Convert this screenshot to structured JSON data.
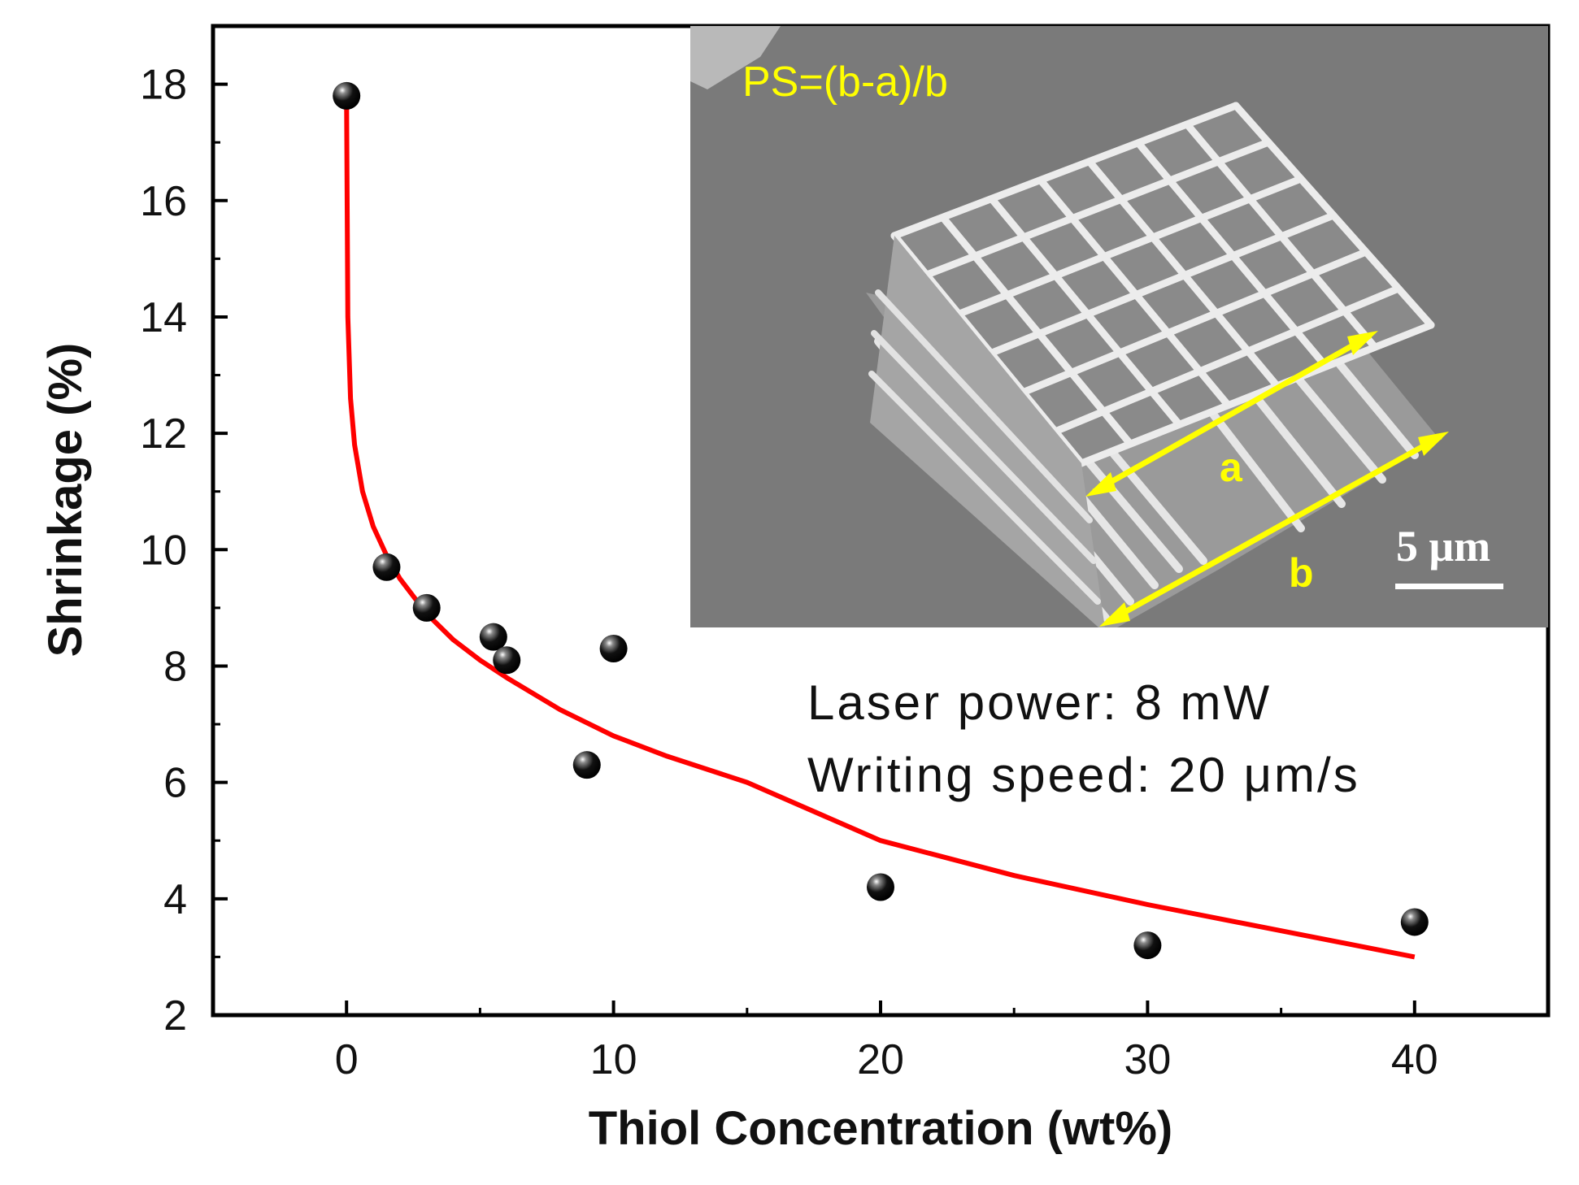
{
  "chart_data": {
    "type": "scatter",
    "xlabel": "Thiol Concentration (wt%)",
    "ylabel": "Shrinkage (%)",
    "xlim": [
      -5,
      45
    ],
    "ylim": [
      2,
      19
    ],
    "x_ticks": [
      0,
      10,
      20,
      30,
      40
    ],
    "x_tick_labels": [
      "0",
      "10",
      "20",
      "30",
      "40"
    ],
    "y_ticks": [
      2,
      4,
      6,
      8,
      10,
      12,
      14,
      16,
      18
    ],
    "y_tick_labels": [
      "2",
      "4",
      "6",
      "8",
      "10",
      "12",
      "14",
      "16",
      "18"
    ],
    "series": [
      {
        "name": "measured",
        "x": [
          0,
          1.5,
          3,
          5.5,
          6,
          9,
          10,
          20,
          30,
          40
        ],
        "y": [
          17.8,
          9.7,
          9.0,
          8.5,
          8.1,
          6.3,
          8.3,
          4.2,
          3.2,
          3.6
        ]
      },
      {
        "name": "fit",
        "x": [
          0,
          0.05,
          0.15,
          0.3,
          0.6,
          1,
          1.5,
          2,
          3,
          4,
          5,
          6,
          8,
          10,
          12,
          15,
          20,
          25,
          30,
          35,
          40
        ],
        "y": [
          17.8,
          14.0,
          12.6,
          11.8,
          11.0,
          10.4,
          9.9,
          9.5,
          8.9,
          8.45,
          8.1,
          7.8,
          7.25,
          6.8,
          6.45,
          6.0,
          5.0,
          4.4,
          3.9,
          3.45,
          3.0
        ]
      }
    ],
    "annotations": [
      "Laser power: 8 mW",
      "Writing speed: 20 μm/s"
    ],
    "colors": {
      "points": "#000000",
      "fit_line": "#ff0000",
      "axes": "#000000"
    }
  },
  "inset": {
    "formula": "PS=(b-a)/b",
    "label_a": "a",
    "label_b": "b",
    "scale_bar": "5 μm",
    "colors": {
      "background": "#7c7c7c",
      "text": "#ffff00",
      "scale": "#ffffff",
      "structure": "#d8d8d8"
    }
  }
}
